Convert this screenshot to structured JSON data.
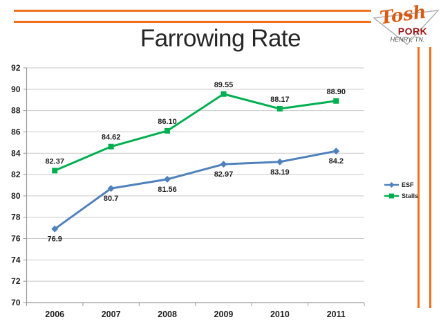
{
  "slide": {
    "title": "Farrowing Rate"
  },
  "decor": {
    "accent_orange": "#F0701E"
  },
  "logo": {
    "brand": "Tosh",
    "sub_brand": "PORK",
    "location": "HENRY, TN.",
    "brand_color": "#D95B12",
    "sub_brand_color": "#9E1414",
    "location_color": "#4A4A4A",
    "triangle_color": "#B0B0B0"
  },
  "legend": {
    "items": [
      {
        "label": "ESF",
        "color": "#4F81BD",
        "marker": "diamond"
      },
      {
        "label": "Stalls",
        "color": "#00AF50",
        "marker": "square"
      }
    ]
  },
  "chart_data": {
    "type": "line",
    "title": "Farrowing Rate",
    "categories": [
      "2006",
      "2007",
      "2008",
      "2009",
      "2010",
      "2011"
    ],
    "series": [
      {
        "name": "ESF",
        "color": "#4F81BD",
        "marker": "diamond",
        "values": [
          76.9,
          80.7,
          81.56,
          82.97,
          83.19,
          84.2
        ],
        "labels": [
          "76.9",
          "80.7",
          "81.56",
          "82.97",
          "83.19",
          "84.2"
        ],
        "label_position": "below"
      },
      {
        "name": "Stalls",
        "color": "#00AF50",
        "marker": "square",
        "values": [
          82.37,
          84.62,
          86.1,
          89.55,
          88.17,
          88.9
        ],
        "labels": [
          "82.37",
          "84.62",
          "86.10",
          "89.55",
          "88.17",
          "88.90"
        ],
        "label_position": "above"
      }
    ],
    "ylim": [
      70,
      92
    ],
    "ytick_step": 2,
    "grid": true,
    "legend_position": "right",
    "axis_color": "#999999",
    "grid_color": "#C9C9C9",
    "label_color": "#1F1F1F"
  }
}
